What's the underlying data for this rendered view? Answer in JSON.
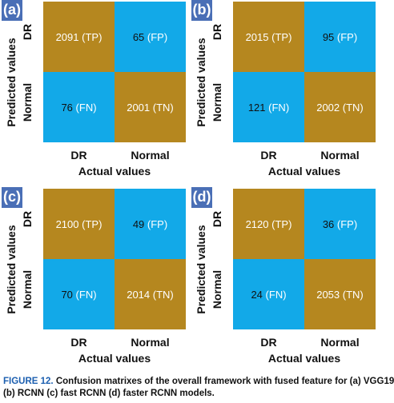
{
  "chart_data": [
    {
      "type": "heatmap",
      "panel_label": "(a)",
      "xlabel": "Actual values",
      "ylabel": "Predicted values",
      "columns": [
        "DR",
        "Normal"
      ],
      "rows": [
        "DR",
        "Normal"
      ],
      "values": [
        [
          2091,
          65
        ],
        [
          76,
          2001
        ]
      ],
      "cells": [
        {
          "value": "2091",
          "tag": "(TP)",
          "kind": "tp"
        },
        {
          "value": "65",
          "tag": "(FP)",
          "kind": "fp"
        },
        {
          "value": "76",
          "tag": "(FN)",
          "kind": "fn"
        },
        {
          "value": "2001",
          "tag": "(TN)",
          "kind": "tn"
        }
      ]
    },
    {
      "type": "heatmap",
      "panel_label": "(b)",
      "xlabel": "Actual values",
      "ylabel": "Predicted values",
      "columns": [
        "DR",
        "Normal"
      ],
      "rows": [
        "DR",
        "Normal"
      ],
      "values": [
        [
          2015,
          95
        ],
        [
          121,
          2002
        ]
      ],
      "cells": [
        {
          "value": "2015",
          "tag": "(TP)",
          "kind": "tp"
        },
        {
          "value": "95",
          "tag": "(FP)",
          "kind": "fp"
        },
        {
          "value": "121",
          "tag": "(FN)",
          "kind": "fn"
        },
        {
          "value": "2002",
          "tag": "(TN)",
          "kind": "tn"
        }
      ]
    },
    {
      "type": "heatmap",
      "panel_label": "(c)",
      "xlabel": "Actual values",
      "ylabel": "Predicted values",
      "columns": [
        "DR",
        "Normal"
      ],
      "rows": [
        "DR",
        "Normal"
      ],
      "values": [
        [
          2100,
          49
        ],
        [
          70,
          2014
        ]
      ],
      "cells": [
        {
          "value": "2100",
          "tag": "(TP)",
          "kind": "tp"
        },
        {
          "value": "49",
          "tag": "(FP)",
          "kind": "fp"
        },
        {
          "value": "70",
          "tag": "(FN)",
          "kind": "fn"
        },
        {
          "value": "2014",
          "tag": "(TN)",
          "kind": "tn"
        }
      ]
    },
    {
      "type": "heatmap",
      "panel_label": "(d)",
      "xlabel": "Actual values",
      "ylabel": "Predicted values",
      "columns": [
        "DR",
        "Normal"
      ],
      "rows": [
        "DR",
        "Normal"
      ],
      "values": [
        [
          2120,
          36
        ],
        [
          24,
          2053
        ]
      ],
      "cells": [
        {
          "value": "2120",
          "tag": "(TP)",
          "kind": "tp"
        },
        {
          "value": "36",
          "tag": "(FP)",
          "kind": "fp"
        },
        {
          "value": "24",
          "tag": "(FN)",
          "kind": "fn"
        },
        {
          "value": "2053",
          "tag": "(TN)",
          "kind": "tn"
        }
      ]
    }
  ],
  "colors": {
    "true_cells": "#b5871f",
    "false_cells": "#12a9e8",
    "panel_label_bg": "#4a6fb6",
    "figure_tag": "#1c5fb0"
  },
  "caption": {
    "figure": "FIGURE 12.",
    "line1": "Confusion matrixes of the overall framework with fused feature for (a) VGG19",
    "line2": "(b) RCNN (c) fast RCNN (d) faster RCNN models."
  }
}
